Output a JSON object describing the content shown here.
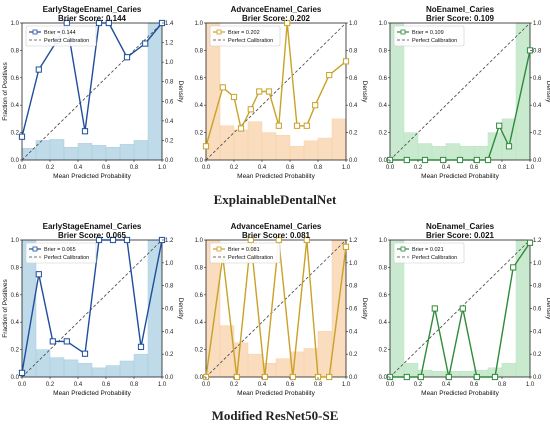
{
  "row_captions": [
    "ExplainableDentalNet",
    "Modified ResNet50-SE"
  ],
  "legend_perfect": "Perfect Calibration",
  "chart_data": [
    {
      "type": "line",
      "row": 0,
      "title": "EarlyStageEnamel_Caries",
      "subtitle": "Brier Score: 0.144",
      "legend_brier": "Brier = 0.144",
      "color": "#1f4e9c",
      "fill": "#a9cde0",
      "xlabel": "Mean Predicted Probability",
      "ylabel": "Fraction of Positives",
      "y2label": "Density",
      "xlim": [
        0,
        1
      ],
      "ylim": [
        0,
        1
      ],
      "y2lim": [
        0,
        1.4
      ],
      "y2ticks": [
        0.0,
        0.2,
        0.4,
        0.6,
        0.8,
        1.0,
        1.2,
        1.4
      ],
      "points": [
        [
          0.0,
          0.17
        ],
        [
          0.12,
          0.66
        ],
        [
          0.25,
          0.87
        ],
        [
          0.32,
          1.0
        ],
        [
          0.45,
          0.21
        ],
        [
          0.55,
          1.0
        ],
        [
          0.62,
          1.0
        ],
        [
          0.75,
          0.75
        ],
        [
          0.88,
          0.85
        ],
        [
          1.0,
          1.0
        ]
      ],
      "hist": [
        0.12,
        0.2,
        0.21,
        0.13,
        0.17,
        0.15,
        0.13,
        0.16,
        0.2,
        1.4
      ]
    },
    {
      "type": "line",
      "row": 0,
      "title": "AdvanceEnamel_Caries",
      "subtitle": "Brier Score: 0.202",
      "legend_brier": "Brier = 0.202",
      "color": "#c9a227",
      "fill": "#f8d0a8",
      "xlabel": "Mean Predicted Probability",
      "ylabel": "",
      "y2label": "Density",
      "xlim": [
        0,
        1
      ],
      "ylim": [
        0,
        1
      ],
      "y2lim": [
        0,
        1.0
      ],
      "y2ticks": [
        0.0,
        0.2,
        0.4,
        0.6,
        0.8,
        1.0
      ],
      "points": [
        [
          0.0,
          0.1
        ],
        [
          0.12,
          0.53
        ],
        [
          0.2,
          0.46
        ],
        [
          0.25,
          0.23
        ],
        [
          0.32,
          0.37
        ],
        [
          0.38,
          0.5
        ],
        [
          0.45,
          0.5
        ],
        [
          0.52,
          0.25
        ],
        [
          0.58,
          1.0
        ],
        [
          0.65,
          0.25
        ],
        [
          0.72,
          0.25
        ],
        [
          0.78,
          0.4
        ],
        [
          0.88,
          0.62
        ],
        [
          1.0,
          0.72
        ]
      ],
      "hist": [
        1.0,
        0.25,
        0.22,
        0.28,
        0.2,
        0.18,
        0.1,
        0.14,
        0.16,
        0.3
      ]
    },
    {
      "type": "line",
      "row": 0,
      "title": "NoEnamel_Caries",
      "subtitle": "Brier Score: 0.109",
      "legend_brier": "Brier = 0.109",
      "color": "#2e8b3a",
      "fill": "#b8e3c0",
      "xlabel": "Mean Predicted Probability",
      "ylabel": "",
      "y2label": "Density",
      "xlim": [
        0,
        1
      ],
      "ylim": [
        0,
        1
      ],
      "y2lim": [
        0,
        1.0
      ],
      "y2ticks": [
        0.0,
        0.2,
        0.4,
        0.6,
        0.8,
        1.0
      ],
      "points": [
        [
          0.0,
          0.0
        ],
        [
          0.12,
          0.0
        ],
        [
          0.25,
          0.0
        ],
        [
          0.38,
          0.0
        ],
        [
          0.5,
          0.0
        ],
        [
          0.62,
          0.0
        ],
        [
          0.7,
          0.0
        ],
        [
          0.78,
          0.25
        ],
        [
          0.85,
          0.1
        ],
        [
          1.0,
          0.8
        ]
      ],
      "hist": [
        1.0,
        0.2,
        0.12,
        0.1,
        0.12,
        0.1,
        0.1,
        0.2,
        0.3,
        1.0
      ]
    },
    {
      "type": "line",
      "row": 1,
      "title": "EarlyStageEnamel_Caries",
      "subtitle": "Brier Score: 0.065",
      "legend_brier": "Brier = 0.065",
      "color": "#1f4e9c",
      "fill": "#a9cde0",
      "xlabel": "Mean Predicted Probability",
      "ylabel": "Fraction of Positives",
      "y2label": "Density",
      "xlim": [
        0,
        1
      ],
      "ylim": [
        0,
        1
      ],
      "y2lim": [
        0,
        1.2
      ],
      "y2ticks": [
        0.0,
        0.2,
        0.4,
        0.6,
        0.8,
        1.0,
        1.2
      ],
      "points": [
        [
          0.0,
          0.03
        ],
        [
          0.12,
          0.75
        ],
        [
          0.22,
          0.26
        ],
        [
          0.32,
          0.26
        ],
        [
          0.45,
          0.17
        ],
        [
          0.55,
          1.0
        ],
        [
          0.65,
          1.0
        ],
        [
          0.75,
          1.0
        ],
        [
          0.85,
          0.22
        ],
        [
          1.0,
          1.0
        ]
      ],
      "hist": [
        1.2,
        0.24,
        0.17,
        0.15,
        0.12,
        0.08,
        0.1,
        0.14,
        0.2,
        1.2
      ]
    },
    {
      "type": "line",
      "row": 1,
      "title": "AdvanceEnamel_Caries",
      "subtitle": "Brier Score: 0.081",
      "legend_brier": "Brier = 0.081",
      "color": "#c9a227",
      "fill": "#f8d0a8",
      "xlabel": "Mean Predicted Probability",
      "ylabel": "",
      "y2label": "Density",
      "xlim": [
        0,
        1
      ],
      "ylim": [
        0,
        1
      ],
      "y2lim": [
        0,
        1.2
      ],
      "y2ticks": [
        0.0,
        0.2,
        0.4,
        0.6,
        0.8,
        1.0,
        1.2
      ],
      "points": [
        [
          0.0,
          0.0
        ],
        [
          0.12,
          0.88
        ],
        [
          0.22,
          0.0
        ],
        [
          0.32,
          1.0
        ],
        [
          0.42,
          0.0
        ],
        [
          0.52,
          1.0
        ],
        [
          0.62,
          0.0
        ],
        [
          0.72,
          1.0
        ],
        [
          0.8,
          0.0
        ],
        [
          0.88,
          0.0
        ],
        [
          1.0,
          0.95
        ]
      ],
      "hist": [
        1.2,
        0.45,
        0.3,
        0.2,
        0.12,
        0.16,
        0.22,
        0.25,
        0.4,
        1.2
      ]
    },
    {
      "type": "line",
      "row": 1,
      "title": "NoEnamel_Caries",
      "subtitle": "Brier Score: 0.021",
      "legend_brier": "Brier = 0.021",
      "color": "#2e8b3a",
      "fill": "#b8e3c0",
      "xlabel": "Mean Predicted Probability",
      "ylabel": "",
      "y2label": "Density",
      "xlim": [
        0,
        1
      ],
      "ylim": [
        0,
        1
      ],
      "y2lim": [
        0,
        1.2
      ],
      "y2ticks": [
        0.0,
        0.2,
        0.4,
        0.6,
        0.8,
        1.0,
        1.2
      ],
      "points": [
        [
          0.0,
          0.0
        ],
        [
          0.12,
          0.0
        ],
        [
          0.22,
          0.0
        ],
        [
          0.32,
          0.5
        ],
        [
          0.42,
          0.0
        ],
        [
          0.52,
          0.5
        ],
        [
          0.62,
          0.0
        ],
        [
          0.75,
          0.0
        ],
        [
          0.88,
          0.8
        ],
        [
          1.0,
          0.98
        ]
      ],
      "hist": [
        1.2,
        0.12,
        0.06,
        0.05,
        0.05,
        0.05,
        0.06,
        0.08,
        0.12,
        1.2
      ]
    }
  ]
}
